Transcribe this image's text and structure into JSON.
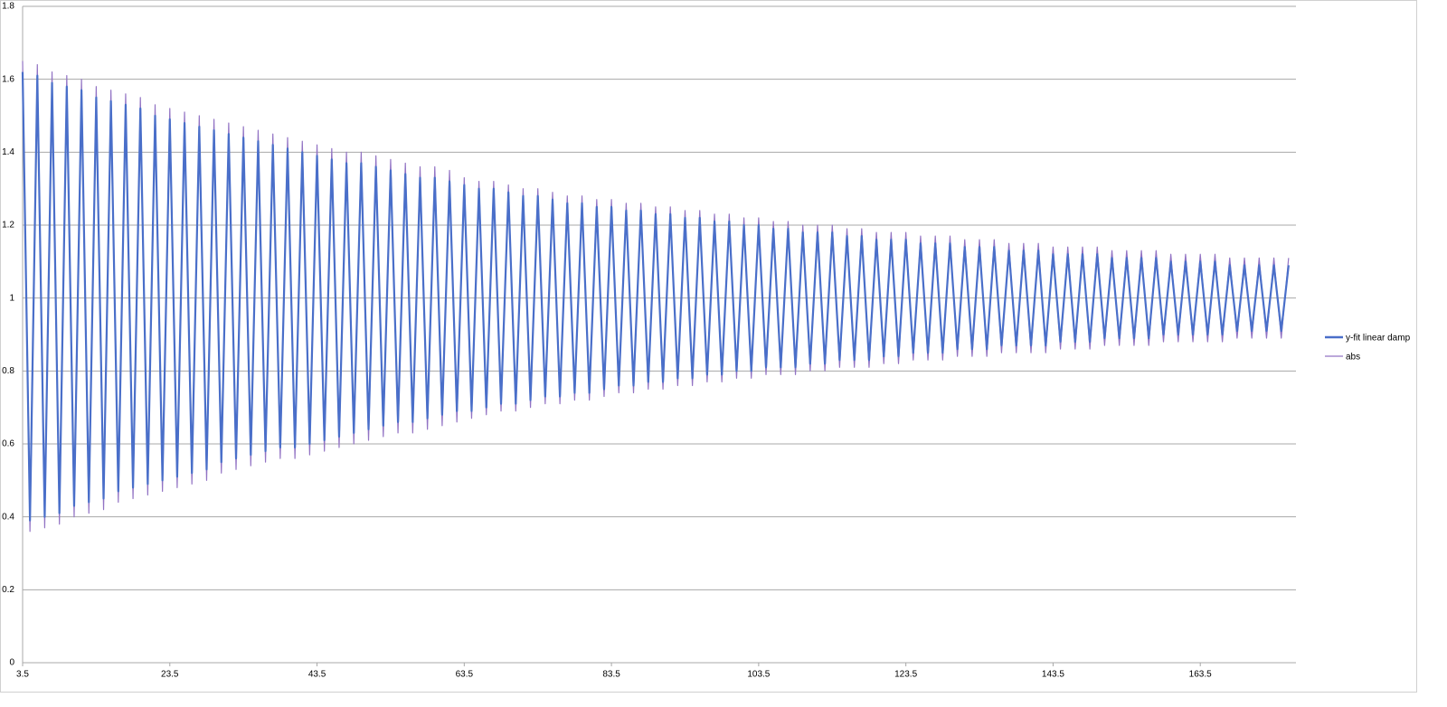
{
  "chart_data": {
    "type": "line",
    "x": [
      3.5,
      4.5,
      5.5,
      6.5,
      7.5,
      8.5,
      9.5,
      10.5,
      11.5,
      12.5,
      13.5,
      14.5,
      15.5,
      16.5,
      17.5,
      18.5,
      19.5,
      20.5,
      21.5,
      22.5,
      23.5,
      24.5,
      25.5,
      26.5,
      27.5,
      28.5,
      29.5,
      30.5,
      31.5,
      32.5,
      33.5,
      34.5,
      35.5,
      36.5,
      37.5,
      38.5,
      39.5,
      40.5,
      41.5,
      42.5,
      43.5,
      44.5,
      45.5,
      46.5,
      47.5,
      48.5,
      49.5,
      50.5,
      51.5,
      52.5,
      53.5,
      54.5,
      55.5,
      56.5,
      57.5,
      58.5,
      59.5,
      60.5,
      61.5,
      62.5,
      63.5,
      64.5,
      65.5,
      66.5,
      67.5,
      68.5,
      69.5,
      70.5,
      71.5,
      72.5,
      73.5,
      74.5,
      75.5,
      76.5,
      77.5,
      78.5,
      79.5,
      80.5,
      81.5,
      82.5,
      83.5,
      84.5,
      85.5,
      86.5,
      87.5,
      88.5,
      89.5,
      90.5,
      91.5,
      92.5,
      93.5,
      94.5,
      95.5,
      96.5,
      97.5,
      98.5,
      99.5,
      100.5,
      101.5,
      102.5,
      103.5,
      104.5,
      105.5,
      106.5,
      107.5,
      108.5,
      109.5,
      110.5,
      111.5,
      112.5,
      113.5,
      114.5,
      115.5,
      116.5,
      117.5,
      118.5,
      119.5,
      120.5,
      121.5,
      122.5,
      123.5,
      124.5,
      125.5,
      126.5,
      127.5,
      128.5,
      129.5,
      130.5,
      131.5,
      132.5,
      133.5,
      134.5,
      135.5,
      136.5,
      137.5,
      138.5,
      139.5,
      140.5,
      141.5,
      142.5,
      143.5,
      144.5,
      145.5,
      146.5,
      147.5,
      148.5,
      149.5,
      150.5,
      151.5,
      152.5,
      153.5,
      154.5,
      155.5,
      156.5,
      157.5,
      158.5,
      159.5,
      160.5,
      161.5,
      162.5,
      163.5,
      164.5,
      165.5,
      166.5,
      167.5,
      168.5,
      169.5,
      170.5,
      171.5,
      172.5,
      173.5,
      174.5,
      175.5
    ],
    "series": [
      {
        "name": "y-fit linear damp",
        "color": "#4a6fc9",
        "values": [
          1.62,
          0.39,
          1.61,
          0.4,
          1.59,
          0.41,
          1.58,
          0.43,
          1.57,
          0.44,
          1.55,
          0.45,
          1.54,
          0.47,
          1.53,
          0.48,
          1.52,
          0.49,
          1.5,
          0.5,
          1.49,
          0.51,
          1.48,
          0.52,
          1.47,
          0.53,
          1.46,
          0.55,
          1.45,
          0.56,
          1.44,
          0.57,
          1.43,
          0.58,
          1.42,
          0.59,
          1.41,
          0.59,
          1.4,
          0.6,
          1.39,
          0.61,
          1.38,
          0.62,
          1.37,
          0.63,
          1.37,
          0.64,
          1.36,
          0.65,
          1.35,
          0.66,
          1.34,
          0.66,
          1.33,
          0.67,
          1.33,
          0.68,
          1.32,
          0.69,
          1.31,
          0.69,
          1.3,
          0.7,
          1.3,
          0.71,
          1.29,
          0.71,
          1.28,
          0.72,
          1.28,
          0.73,
          1.27,
          0.73,
          1.26,
          0.74,
          1.26,
          0.74,
          1.25,
          0.75,
          1.25,
          0.76,
          1.24,
          0.76,
          1.24,
          0.77,
          1.23,
          0.77,
          1.23,
          0.78,
          1.22,
          0.78,
          1.22,
          0.79,
          1.21,
          0.79,
          1.21,
          0.8,
          1.2,
          0.8,
          1.2,
          0.81,
          1.19,
          0.81,
          1.19,
          0.81,
          1.18,
          0.82,
          1.18,
          0.82,
          1.18,
          0.83,
          1.17,
          0.83,
          1.17,
          0.83,
          1.16,
          0.84,
          1.16,
          0.84,
          1.16,
          0.85,
          1.15,
          0.85,
          1.15,
          0.85,
          1.15,
          0.86,
          1.14,
          0.86,
          1.14,
          0.86,
          1.14,
          0.87,
          1.13,
          0.87,
          1.13,
          0.87,
          1.13,
          0.87,
          1.12,
          0.88,
          1.12,
          0.88,
          1.12,
          0.88,
          1.12,
          0.89,
          1.11,
          0.89,
          1.11,
          0.89,
          1.11,
          0.89,
          1.11,
          0.9,
          1.1,
          0.9,
          1.1,
          0.9,
          1.1,
          0.9,
          1.1,
          0.9,
          1.09,
          0.91,
          1.09,
          0.91,
          1.09,
          0.91,
          1.09,
          0.91,
          1.09
        ]
      },
      {
        "name": "abs",
        "color": "#9273c4",
        "values": [
          1.65,
          0.36,
          1.64,
          0.37,
          1.62,
          0.38,
          1.61,
          0.4,
          1.6,
          0.41,
          1.58,
          0.42,
          1.57,
          0.44,
          1.56,
          0.45,
          1.55,
          0.46,
          1.53,
          0.47,
          1.52,
          0.48,
          1.51,
          0.49,
          1.5,
          0.5,
          1.49,
          0.52,
          1.48,
          0.53,
          1.47,
          0.54,
          1.46,
          0.55,
          1.45,
          0.56,
          1.44,
          0.56,
          1.43,
          0.57,
          1.42,
          0.58,
          1.41,
          0.59,
          1.4,
          0.6,
          1.4,
          0.61,
          1.39,
          0.62,
          1.38,
          0.63,
          1.37,
          0.63,
          1.36,
          0.64,
          1.36,
          0.65,
          1.35,
          0.66,
          1.33,
          0.67,
          1.32,
          0.68,
          1.32,
          0.69,
          1.31,
          0.69,
          1.3,
          0.7,
          1.3,
          0.71,
          1.29,
          0.71,
          1.28,
          0.72,
          1.28,
          0.72,
          1.27,
          0.73,
          1.27,
          0.74,
          1.26,
          0.74,
          1.26,
          0.75,
          1.25,
          0.75,
          1.25,
          0.76,
          1.24,
          0.76,
          1.24,
          0.77,
          1.23,
          0.77,
          1.23,
          0.78,
          1.22,
          0.78,
          1.22,
          0.79,
          1.21,
          0.79,
          1.21,
          0.79,
          1.2,
          0.8,
          1.2,
          0.8,
          1.2,
          0.81,
          1.19,
          0.81,
          1.19,
          0.81,
          1.18,
          0.82,
          1.18,
          0.82,
          1.18,
          0.83,
          1.17,
          0.83,
          1.17,
          0.83,
          1.17,
          0.84,
          1.16,
          0.84,
          1.16,
          0.84,
          1.16,
          0.85,
          1.15,
          0.85,
          1.15,
          0.85,
          1.15,
          0.85,
          1.14,
          0.86,
          1.14,
          0.86,
          1.14,
          0.86,
          1.14,
          0.87,
          1.13,
          0.87,
          1.13,
          0.87,
          1.13,
          0.87,
          1.13,
          0.88,
          1.12,
          0.88,
          1.12,
          0.88,
          1.12,
          0.88,
          1.12,
          0.88,
          1.11,
          0.89,
          1.11,
          0.89,
          1.11,
          0.89,
          1.11,
          0.89,
          1.11
        ]
      }
    ],
    "xlim": [
      3.5,
      176.5
    ],
    "xticks": [
      3.5,
      23.5,
      43.5,
      63.5,
      83.5,
      103.5,
      123.5,
      143.5,
      163.5
    ],
    "ylim": [
      0,
      1.8
    ],
    "yticks": [
      0,
      0.2,
      0.4,
      0.6,
      0.8,
      1,
      1.2,
      1.4,
      1.6,
      1.8
    ],
    "grid": true,
    "legend": "right"
  }
}
